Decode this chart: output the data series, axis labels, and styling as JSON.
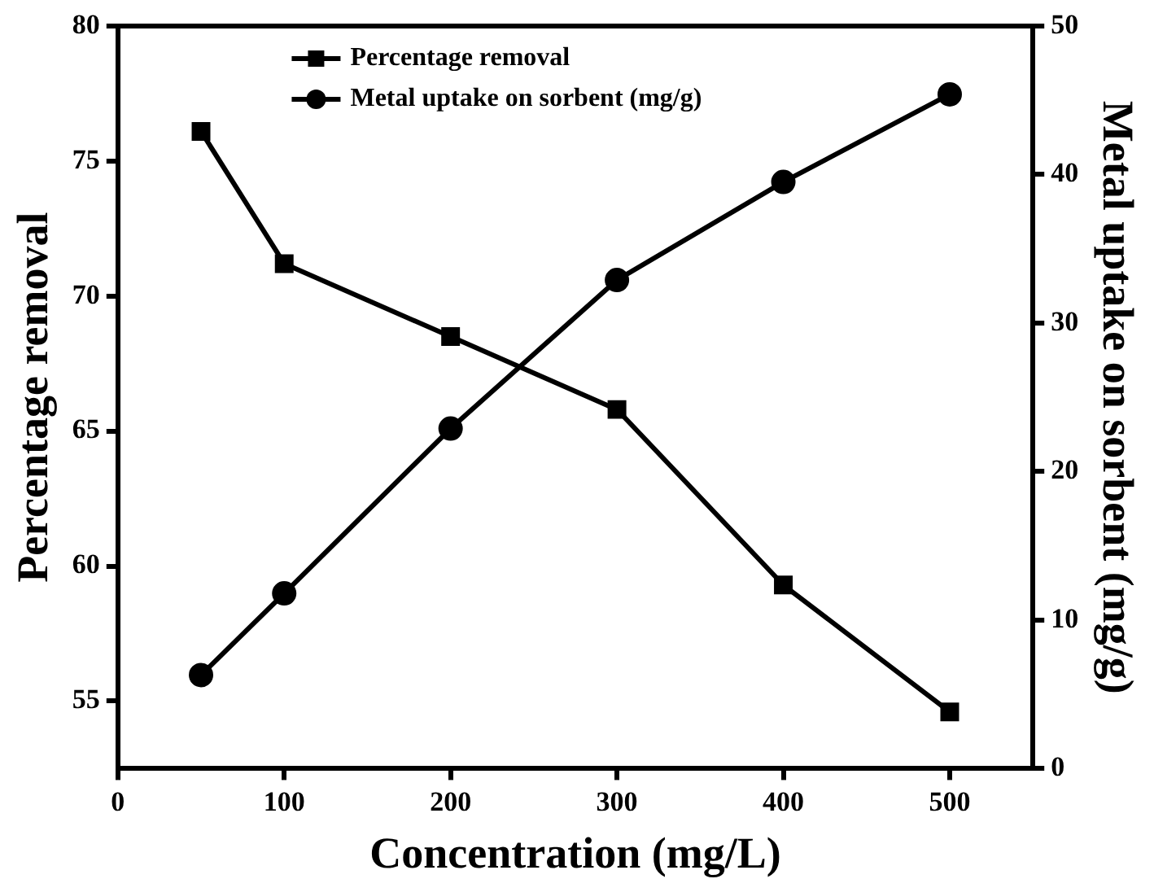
{
  "chart_data": {
    "type": "line",
    "xlabel": "Concentration (mg/L)",
    "ylabel": "Percentage removal",
    "y2label": "Metal uptake on sorbent (mg/g)",
    "x": [
      50,
      100,
      200,
      300,
      400,
      500
    ],
    "xlim": [
      0,
      550
    ],
    "xticks": [
      0,
      100,
      200,
      300,
      400,
      500
    ],
    "ylim": [
      52.5,
      80
    ],
    "yticks": [
      55,
      60,
      65,
      70,
      75,
      80
    ],
    "y2lim": [
      0,
      50
    ],
    "y2ticks": [
      0,
      10,
      20,
      30,
      40,
      50
    ],
    "series": [
      {
        "name": "Percentage removal",
        "color": "#000000",
        "marker": "square",
        "values": [
          76.1,
          71.2,
          68.5,
          65.8,
          59.3,
          54.6
        ]
      },
      {
        "name": "Metal uptake on sorbent (mg/g)",
        "color": "#000000",
        "marker": "circle",
        "axis": "y2",
        "values": [
          6.3,
          11.8,
          22.9,
          32.9,
          39.5,
          45.4
        ]
      }
    ],
    "legend": "top",
    "grid": false,
    "line_style": "solid"
  }
}
